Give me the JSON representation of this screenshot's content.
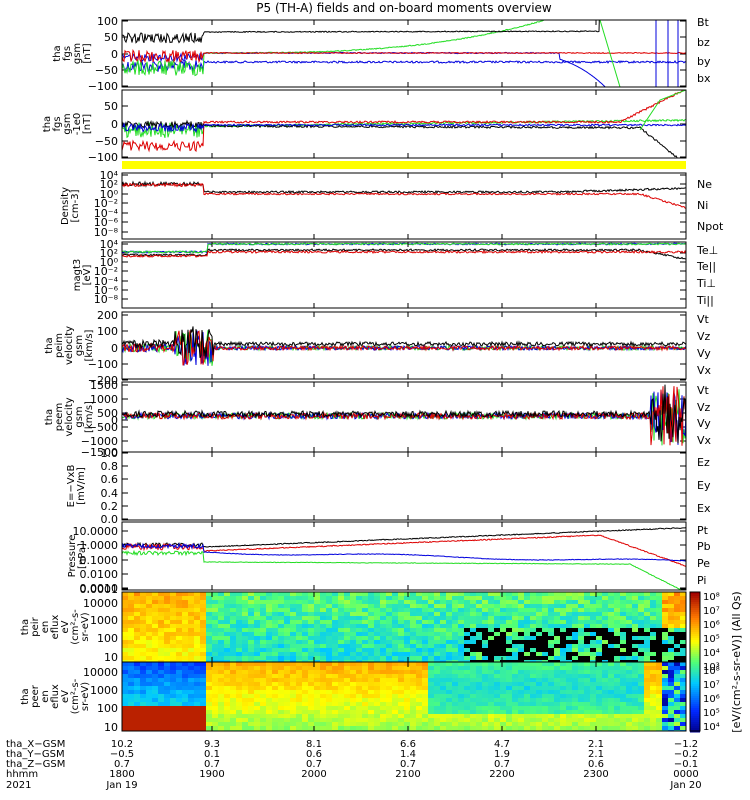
{
  "title": "P5 (TH-A) fields and on-board moments overview",
  "colors": {
    "black": "#000000",
    "red": "#dd0000",
    "green": "#22dd22",
    "blue": "#0000dd",
    "yellow": "#ffff00",
    "frame": "#000000"
  },
  "chart_data": [
    {
      "id": "p1",
      "type": "line",
      "ylabel": [
        "tha",
        "fgs",
        "gsm",
        "[nT]"
      ],
      "yticks": [
        "100",
        "50",
        "0",
        "−50",
        "−100"
      ],
      "ylim": [
        -100,
        100
      ],
      "legend": [
        {
          "label": "Bt",
          "color": "#000000"
        },
        {
          "label": "bz",
          "color": "#dd0000"
        },
        {
          "label": "by",
          "color": "#22dd22"
        },
        {
          "label": "bx",
          "color": "#0000dd"
        }
      ]
    },
    {
      "id": "p2",
      "type": "line",
      "ylabel": [
        "tha",
        "fgs",
        "gsm",
        "-1e0",
        "[nT]"
      ],
      "yticks": [
        "50",
        "0",
        "−50",
        "−100"
      ],
      "ylim": [
        -125,
        90
      ]
    },
    {
      "id": "p3",
      "type": "line",
      "yscale": "log",
      "ylabel": [
        "Density",
        "[cm-3]"
      ],
      "yticks": [
        "10⁴",
        "10²",
        "10⁰",
        "10⁻²",
        "10⁻⁴",
        "10⁻⁶",
        "10⁻⁸"
      ],
      "legend": [
        {
          "label": "Ne",
          "color": "#dd0000"
        },
        {
          "label": "Ni",
          "color": "#000000"
        },
        {
          "label": "Npot",
          "color": "#0000dd"
        }
      ]
    },
    {
      "id": "p4",
      "type": "line",
      "yscale": "log",
      "ylabel": [
        "magt3",
        "[eV]"
      ],
      "yticks": [
        "10⁴",
        "10²",
        "10⁰",
        "10⁻²",
        "10⁻⁴",
        "10⁻⁶",
        "10⁻⁸"
      ],
      "legend": [
        {
          "label": "Te⊥",
          "color": "#dd0000"
        },
        {
          "label": "Te||",
          "color": "#000000"
        },
        {
          "label": "Ti⊥",
          "color": "#0000dd"
        },
        {
          "label": "Ti||",
          "color": "#22dd22"
        }
      ]
    },
    {
      "id": "p5",
      "type": "line",
      "ylabel": [
        "tha",
        "peim",
        "velocity",
        "gsm",
        "[km/s]"
      ],
      "yticks": [
        "200",
        "100",
        "0",
        "−100",
        "−200"
      ],
      "ylim": [
        -200,
        200
      ],
      "legend": [
        {
          "label": "Vt",
          "color": "#000000"
        },
        {
          "label": "Vz",
          "color": "#dd0000"
        },
        {
          "label": "Vy",
          "color": "#22dd22"
        },
        {
          "label": "Vx",
          "color": "#0000dd"
        }
      ]
    },
    {
      "id": "p6",
      "type": "line",
      "ylabel": [
        "tha",
        "peem",
        "velocity",
        "gsm",
        "[km/s]"
      ],
      "yticks": [
        "1500",
        "1000",
        "500",
        "0",
        "−500",
        "−1000",
        "−1500"
      ],
      "ylim": [
        -1500,
        1500
      ],
      "legend": [
        {
          "label": "Vt",
          "color": "#000000"
        },
        {
          "label": "Vz",
          "color": "#dd0000"
        },
        {
          "label": "Vy",
          "color": "#22dd22"
        },
        {
          "label": "Vx",
          "color": "#0000dd"
        }
      ]
    },
    {
      "id": "p7",
      "type": "line",
      "ylabel": [
        "E=−VxB",
        "[mV/m]"
      ],
      "yticks": [
        "1.0",
        "0.8",
        "0.6",
        "0.4",
        "0.2",
        "0.0"
      ],
      "ylim": [
        0,
        1
      ],
      "legend": [
        {
          "label": "Ez",
          "color": "#dd0000"
        },
        {
          "label": "Ey",
          "color": "#22dd22"
        },
        {
          "label": "Ex",
          "color": "#0000dd"
        }
      ]
    },
    {
      "id": "p8",
      "type": "line",
      "yscale": "log",
      "ylabel": [
        "Pressure",
        "[nPa]"
      ],
      "yticks": [
        "10.0000",
        "1.0000",
        "0.1000",
        "0.0100",
        "0.0010",
        "0.0001"
      ],
      "ylim": [
        0.0001,
        30
      ],
      "legend": [
        {
          "label": "Pt",
          "color": "#000000"
        },
        {
          "label": "Pb",
          "color": "#dd0000"
        },
        {
          "label": "Pe",
          "color": "#22dd22"
        },
        {
          "label": "Pi",
          "color": "#0000dd"
        }
      ]
    },
    {
      "id": "p9",
      "type": "heatmap",
      "yscale": "log",
      "ylabel": [
        "tha",
        "peir",
        "en",
        "eflux",
        "eV",
        "(cm²-s-",
        "sr-eV)"
      ],
      "yticks": [
        "10000",
        "1000",
        "100",
        "10"
      ],
      "ylim": [
        5,
        30000
      ]
    },
    {
      "id": "p10",
      "type": "heatmap",
      "yscale": "log",
      "ylabel": [
        "tha",
        "peer",
        "en",
        "eflux",
        "eV",
        "(cm²-s-",
        "sr-eV)"
      ],
      "yticks": [
        "10000",
        "1000",
        "100",
        "10"
      ],
      "ylim": [
        5,
        30000
      ]
    }
  ],
  "colorbar": {
    "ticks": [
      "10⁸",
      "10⁷",
      "10⁶",
      "10⁵",
      "10⁴",
      "10³"
    ],
    "label": "[eV/(cm²-s-sr-eV)] (All Qs)"
  },
  "xaxis": {
    "rows": [
      {
        "name": "tha_X−GSM",
        "values": [
          "10.2",
          "9.3",
          "8.1",
          "6.6",
          "4.7",
          "2.1",
          "−1.2"
        ]
      },
      {
        "name": "tha_Y−GSM",
        "values": [
          "−0.5",
          "0.1",
          "0.6",
          "1.4",
          "1.9",
          "2.1",
          "−0.2"
        ]
      },
      {
        "name": "tha_Z−GSM",
        "values": [
          "0.7",
          "0.7",
          "0.7",
          "0.7",
          "0.7",
          "0.6",
          "−0.1"
        ]
      },
      {
        "name": "hhmm",
        "values": [
          "1800",
          "1900",
          "2000",
          "2100",
          "2200",
          "2300",
          "0000"
        ]
      }
    ],
    "date_row": {
      "name": "2021",
      "values": [
        "Jan 19",
        "",
        "",
        "",
        "",
        "",
        "Jan 20"
      ]
    }
  }
}
